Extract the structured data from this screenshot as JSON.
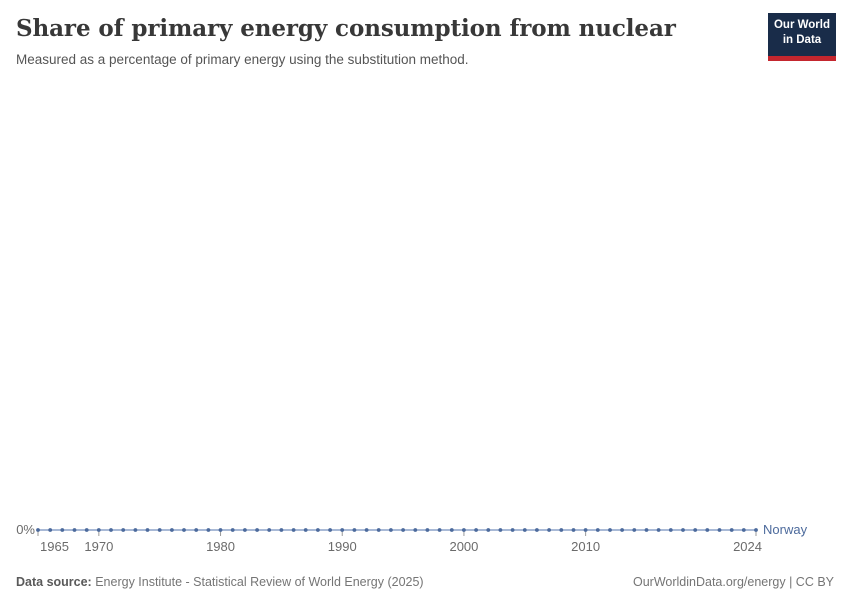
{
  "header": {
    "title": "Share of primary energy consumption from nuclear",
    "subtitle": "Measured as a percentage of primary energy using the substitution method."
  },
  "logo": {
    "line1": "Our World",
    "line2": "in Data",
    "background_color": "#192c49",
    "accent_color": "#c4262e"
  },
  "chart_data": {
    "type": "line",
    "title": "Share of primary energy consumption from nuclear",
    "xlabel": "",
    "ylabel": "",
    "xlim": [
      1965,
      2024
    ],
    "ylim": [
      0,
      0
    ],
    "grid": false,
    "legend_position": "end-of-line",
    "x_ticks": [
      1965,
      1970,
      1980,
      1990,
      2000,
      2010,
      2024
    ],
    "y_ticks": [
      "0%"
    ],
    "y_zero_label": "0%",
    "series": [
      {
        "name": "Norway",
        "color": "#4c6a9c",
        "x": [
          1965,
          1966,
          1967,
          1968,
          1969,
          1970,
          1971,
          1972,
          1973,
          1974,
          1975,
          1976,
          1977,
          1978,
          1979,
          1980,
          1981,
          1982,
          1983,
          1984,
          1985,
          1986,
          1987,
          1988,
          1989,
          1990,
          1991,
          1992,
          1993,
          1994,
          1995,
          1996,
          1997,
          1998,
          1999,
          2000,
          2001,
          2002,
          2003,
          2004,
          2005,
          2006,
          2007,
          2008,
          2009,
          2010,
          2011,
          2012,
          2013,
          2014,
          2015,
          2016,
          2017,
          2018,
          2019,
          2020,
          2021,
          2022,
          2023,
          2024
        ],
        "values": [
          0,
          0,
          0,
          0,
          0,
          0,
          0,
          0,
          0,
          0,
          0,
          0,
          0,
          0,
          0,
          0,
          0,
          0,
          0,
          0,
          0,
          0,
          0,
          0,
          0,
          0,
          0,
          0,
          0,
          0,
          0,
          0,
          0,
          0,
          0,
          0,
          0,
          0,
          0,
          0,
          0,
          0,
          0,
          0,
          0,
          0,
          0,
          0,
          0,
          0,
          0,
          0,
          0,
          0,
          0,
          0,
          0,
          0,
          0,
          0
        ]
      }
    ]
  },
  "entity_label": "Norway",
  "footer": {
    "datasource_label": "Data source:",
    "datasource": " Energy Institute - Statistical Review of World Energy (2025)",
    "credit": "OurWorldinData.org/energy | CC BY"
  }
}
